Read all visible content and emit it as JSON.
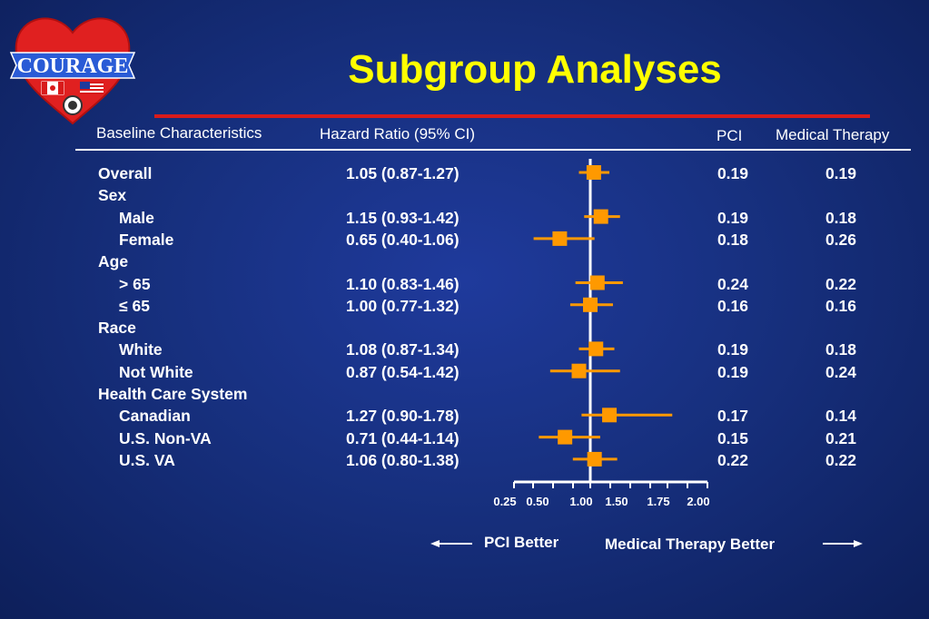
{
  "slide": {
    "title": "Subgroup Analyses",
    "logo_text": "COURAGE"
  },
  "headers": {
    "baseline": "Baseline Characteristics",
    "hr": "Hazard Ratio (95% CI)",
    "pci": "PCI",
    "mt": "Medical Therapy"
  },
  "rows": [
    {
      "label": "Overall",
      "indent": false,
      "hr_text": "1.05 (0.87-1.27)",
      "pci": "0.19",
      "mt": "0.19"
    },
    {
      "label": "Sex",
      "indent": false,
      "hr_text": "",
      "pci": "",
      "mt": ""
    },
    {
      "label": "Male",
      "indent": true,
      "hr_text": "1.15 (0.93-1.42)",
      "pci": "0.19",
      "mt": "0.18"
    },
    {
      "label": "Female",
      "indent": true,
      "hr_text": "0.65 (0.40-1.06)",
      "pci": "0.18",
      "mt": "0.26"
    },
    {
      "label": "Age",
      "indent": false,
      "hr_text": "",
      "pci": "",
      "mt": ""
    },
    {
      "label": "> 65",
      "indent": true,
      "hr_text": "1.10 (0.83-1.46)",
      "pci": "0.24",
      "mt": "0.22"
    },
    {
      "label": "≤ 65",
      "indent": true,
      "hr_text": "1.00 (0.77-1.32)",
      "pci": "0.16",
      "mt": "0.16"
    },
    {
      "label": "Race",
      "indent": false,
      "hr_text": "",
      "pci": "",
      "mt": ""
    },
    {
      "label": "White",
      "indent": true,
      "hr_text": "1.08 (0.87-1.34)",
      "pci": "0.19",
      "mt": "0.18"
    },
    {
      "label": "Not White",
      "indent": true,
      "hr_text": "0.87 (0.54-1.42)",
      "pci": "0.19",
      "mt": "0.24"
    },
    {
      "label": "Health Care System",
      "indent": false,
      "hr_text": "",
      "pci": "",
      "mt": ""
    },
    {
      "label": "Canadian",
      "indent": true,
      "hr_text": "1.27 (0.90-1.78)",
      "pci": "0.17",
      "mt": "0.14"
    },
    {
      "label": "U.S. Non-VA",
      "indent": true,
      "hr_text": "0.71 (0.44-1.14)",
      "pci": "0.15",
      "mt": "0.21"
    },
    {
      "label": "U.S. VA",
      "indent": true,
      "hr_text": "1.06 (0.80-1.38)",
      "pci": "0.22",
      "mt": "0.22"
    }
  ],
  "chart_data": {
    "type": "scatter",
    "subtype": "forest",
    "categories": [
      "Overall",
      "Male",
      "Female",
      "> 65",
      "≤ 65",
      "White",
      "Not White",
      "Canadian",
      "U.S. Non-VA",
      "U.S. VA"
    ],
    "estimates": [
      1.05,
      1.15,
      0.65,
      1.1,
      1.0,
      1.08,
      0.87,
      1.27,
      0.71,
      1.06
    ],
    "ci_low": [
      0.87,
      0.93,
      0.4,
      0.83,
      0.77,
      0.87,
      0.54,
      0.9,
      0.44,
      0.8
    ],
    "ci_high": [
      1.27,
      1.42,
      1.06,
      1.46,
      1.32,
      1.34,
      1.42,
      1.78,
      1.14,
      1.38
    ],
    "x_ticks": [
      "0.25",
      "0.50",
      "1.00",
      "1.50",
      "1.75",
      "2.00"
    ],
    "reference_line": 1.0,
    "left_direction_label": "PCI Better",
    "right_direction_label": "Medical Therapy Better",
    "marker_color": "#ff9900",
    "reference_color": "#ffffff"
  }
}
